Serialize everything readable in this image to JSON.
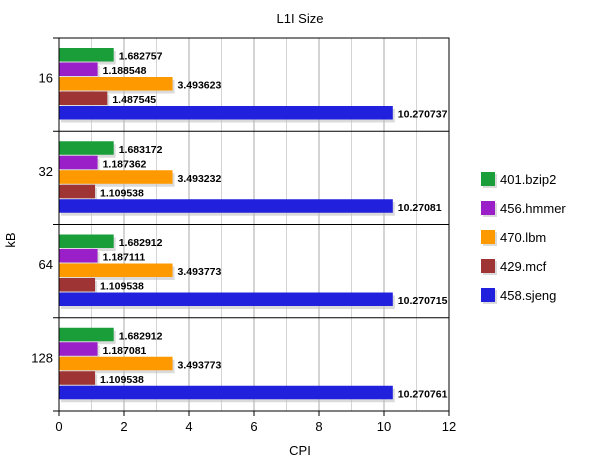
{
  "chart_data": {
    "type": "bar",
    "orientation": "horizontal",
    "title": "L1I Size",
    "xlabel": "CPI",
    "ylabel": "kB",
    "xlim": [
      0,
      12
    ],
    "xticks": [
      "0",
      "2",
      "4",
      "6",
      "8",
      "10",
      "12"
    ],
    "categories": [
      "16",
      "32",
      "64",
      "128"
    ],
    "grid": true,
    "legend_position": "right",
    "series": [
      {
        "name": "401.bzip2",
        "color": "#1a9e3a",
        "values": [
          1.682757,
          1.683172,
          1.682912,
          1.682912
        ],
        "labels": [
          "1.682757",
          "1.683172",
          "1.682912",
          "1.682912"
        ]
      },
      {
        "name": "456.hmmer",
        "color": "#9b1fc8",
        "values": [
          1.188548,
          1.187362,
          1.187111,
          1.187081
        ],
        "labels": [
          "1.188548",
          "1.187362",
          "1.187111",
          "1.187081"
        ]
      },
      {
        "name": "470.lbm",
        "color": "#ff9900",
        "values": [
          3.493623,
          3.493232,
          3.493773,
          3.493773
        ],
        "labels": [
          "3.493623",
          "3.493232",
          "3.493773",
          "3.493773"
        ]
      },
      {
        "name": "429.mcf",
        "color": "#9e3434",
        "values": [
          1.487545,
          1.109538,
          1.109538,
          1.109538
        ],
        "labels": [
          "1.487545",
          "1.109538",
          "1.109538",
          "1.109538"
        ]
      },
      {
        "name": "458.sjeng",
        "color": "#2020dd",
        "values": [
          10.270737,
          10.27081,
          10.270715,
          10.270761
        ],
        "labels": [
          "10.270737",
          "10.27081",
          "10.270715",
          "10.270761"
        ]
      }
    ]
  }
}
